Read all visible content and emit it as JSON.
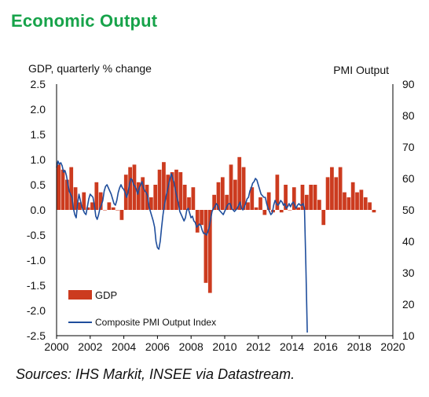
{
  "page": {
    "title": "Economic Output",
    "source": "Sources: IHS Markit, INSEE via Datastream."
  },
  "colors": {
    "title": "#17a34a",
    "gdp_bar": "#cc3b1f",
    "pmi_line": "#1f4e9c",
    "axis": "#000000",
    "grid": "#d9d9d9"
  },
  "chart_data": {
    "type": "bar",
    "left_axis_title": "GDP, quarterly % change",
    "right_axis_title": "PMI Output",
    "left_ylim": [
      -2.5,
      2.5
    ],
    "left_ticks": [
      "2.5",
      "2.0",
      "1.5",
      "1.0",
      "0.5",
      "0.0",
      "-0.5",
      "-1.0",
      "-1.5",
      "-2.0",
      "-2.5"
    ],
    "right_ylim": [
      10,
      90
    ],
    "right_ticks": [
      "90",
      "80",
      "70",
      "60",
      "50",
      "40",
      "30",
      "20",
      "10"
    ],
    "xlim": [
      2000,
      2020
    ],
    "x_ticks": [
      "2000",
      "2002",
      "2004",
      "2006",
      "2008",
      "2010",
      "2012",
      "2014",
      "2016",
      "2018",
      "2020"
    ],
    "legend": [
      "GDP",
      "Composite PMI Output Index"
    ],
    "series": [
      {
        "name": "GDP",
        "axis": "left",
        "kind": "bar",
        "start": 2000.0,
        "step": 0.25,
        "values": [
          0.9,
          0.8,
          0.6,
          0.85,
          0.45,
          0.15,
          0.35,
          0.05,
          0.15,
          0.55,
          0.35,
          0.0,
          0.15,
          0.05,
          0.0,
          -0.2,
          0.7,
          0.85,
          0.9,
          0.55,
          0.65,
          0.5,
          0.25,
          0.5,
          0.8,
          0.95,
          0.7,
          0.75,
          0.8,
          0.75,
          0.5,
          0.25,
          0.45,
          -0.45,
          -0.3,
          -1.45,
          -1.65,
          0.3,
          0.55,
          0.65,
          0.3,
          0.9,
          0.6,
          1.05,
          0.85,
          0.15,
          0.45,
          0.05,
          0.25,
          -0.1,
          0.35,
          -0.05,
          0.7,
          -0.05,
          0.5,
          0.0,
          0.45,
          0.05,
          0.5,
          0.3,
          0.5,
          0.5,
          0.2,
          -0.3,
          0.65,
          0.85,
          0.65,
          0.85,
          0.35,
          0.25,
          0.55,
          0.35,
          0.4,
          0.25,
          0.15,
          -0.05
        ]
      },
      {
        "name": "Composite PMI Output Index",
        "axis": "right",
        "kind": "line",
        "start": 2000.0,
        "step": 0.0833,
        "values": [
          63.5,
          65.5,
          64.5,
          65.0,
          64.0,
          62.0,
          62.5,
          61.0,
          58.5,
          56.0,
          55.0,
          54.0,
          50.5,
          48.5,
          47.5,
          52.0,
          55.0,
          53.0,
          51.0,
          50.0,
          49.0,
          48.5,
          51.0,
          53.5,
          55.0,
          54.5,
          54.0,
          51.5,
          48.0,
          47.0,
          48.5,
          50.5,
          51.5,
          53.0,
          56.0,
          57.5,
          58.0,
          57.0,
          56.0,
          55.0,
          53.5,
          52.0,
          51.5,
          53.0,
          55.5,
          57.0,
          58.0,
          57.0,
          56.5,
          55.5,
          54.0,
          55.5,
          58.0,
          60.0,
          59.5,
          58.0,
          57.5,
          56.5,
          55.0,
          57.0,
          58.0,
          59.0,
          57.0,
          56.0,
          55.5,
          54.5,
          51.0,
          49.5,
          48.0,
          46.5,
          44.5,
          40.0,
          38.0,
          37.5,
          40.0,
          44.5,
          48.5,
          51.5,
          54.0,
          56.0,
          58.0,
          60.0,
          61.5,
          60.0,
          58.5,
          56.0,
          54.0,
          52.0,
          49.5,
          48.5,
          47.5,
          46.5,
          47.5,
          50.0,
          50.5,
          49.0,
          47.5,
          48.0,
          46.5,
          46.0,
          44.5,
          45.0,
          45.5,
          45.0,
          43.5,
          42.5,
          42.5,
          42.0,
          43.0,
          44.5,
          47.0,
          49.5,
          50.5,
          51.0,
          52.0,
          51.5,
          50.0,
          49.5,
          49.0,
          48.5,
          49.5,
          50.5,
          51.5,
          52.0,
          52.0,
          50.5,
          50.0,
          49.5,
          50.0,
          50.5,
          51.5,
          52.5,
          50.5,
          50.0,
          51.0,
          52.0,
          53.5,
          54.0,
          56.0,
          57.0,
          58.5,
          59.0,
          60.0,
          59.5,
          58.0,
          56.5,
          55.0,
          54.5,
          54.0,
          54.0,
          52.0,
          50.5,
          49.5,
          48.5,
          49.0,
          51.5,
          53.0,
          52.0,
          51.5,
          52.0,
          53.0,
          52.5,
          51.5,
          52.0,
          50.5,
          51.0,
          52.0,
          51.0,
          52.0,
          52.5,
          51.5,
          50.5,
          51.5,
          52.0,
          51.5,
          51.5,
          52.0,
          50.5,
          32.0,
          11.0
        ]
      }
    ]
  }
}
